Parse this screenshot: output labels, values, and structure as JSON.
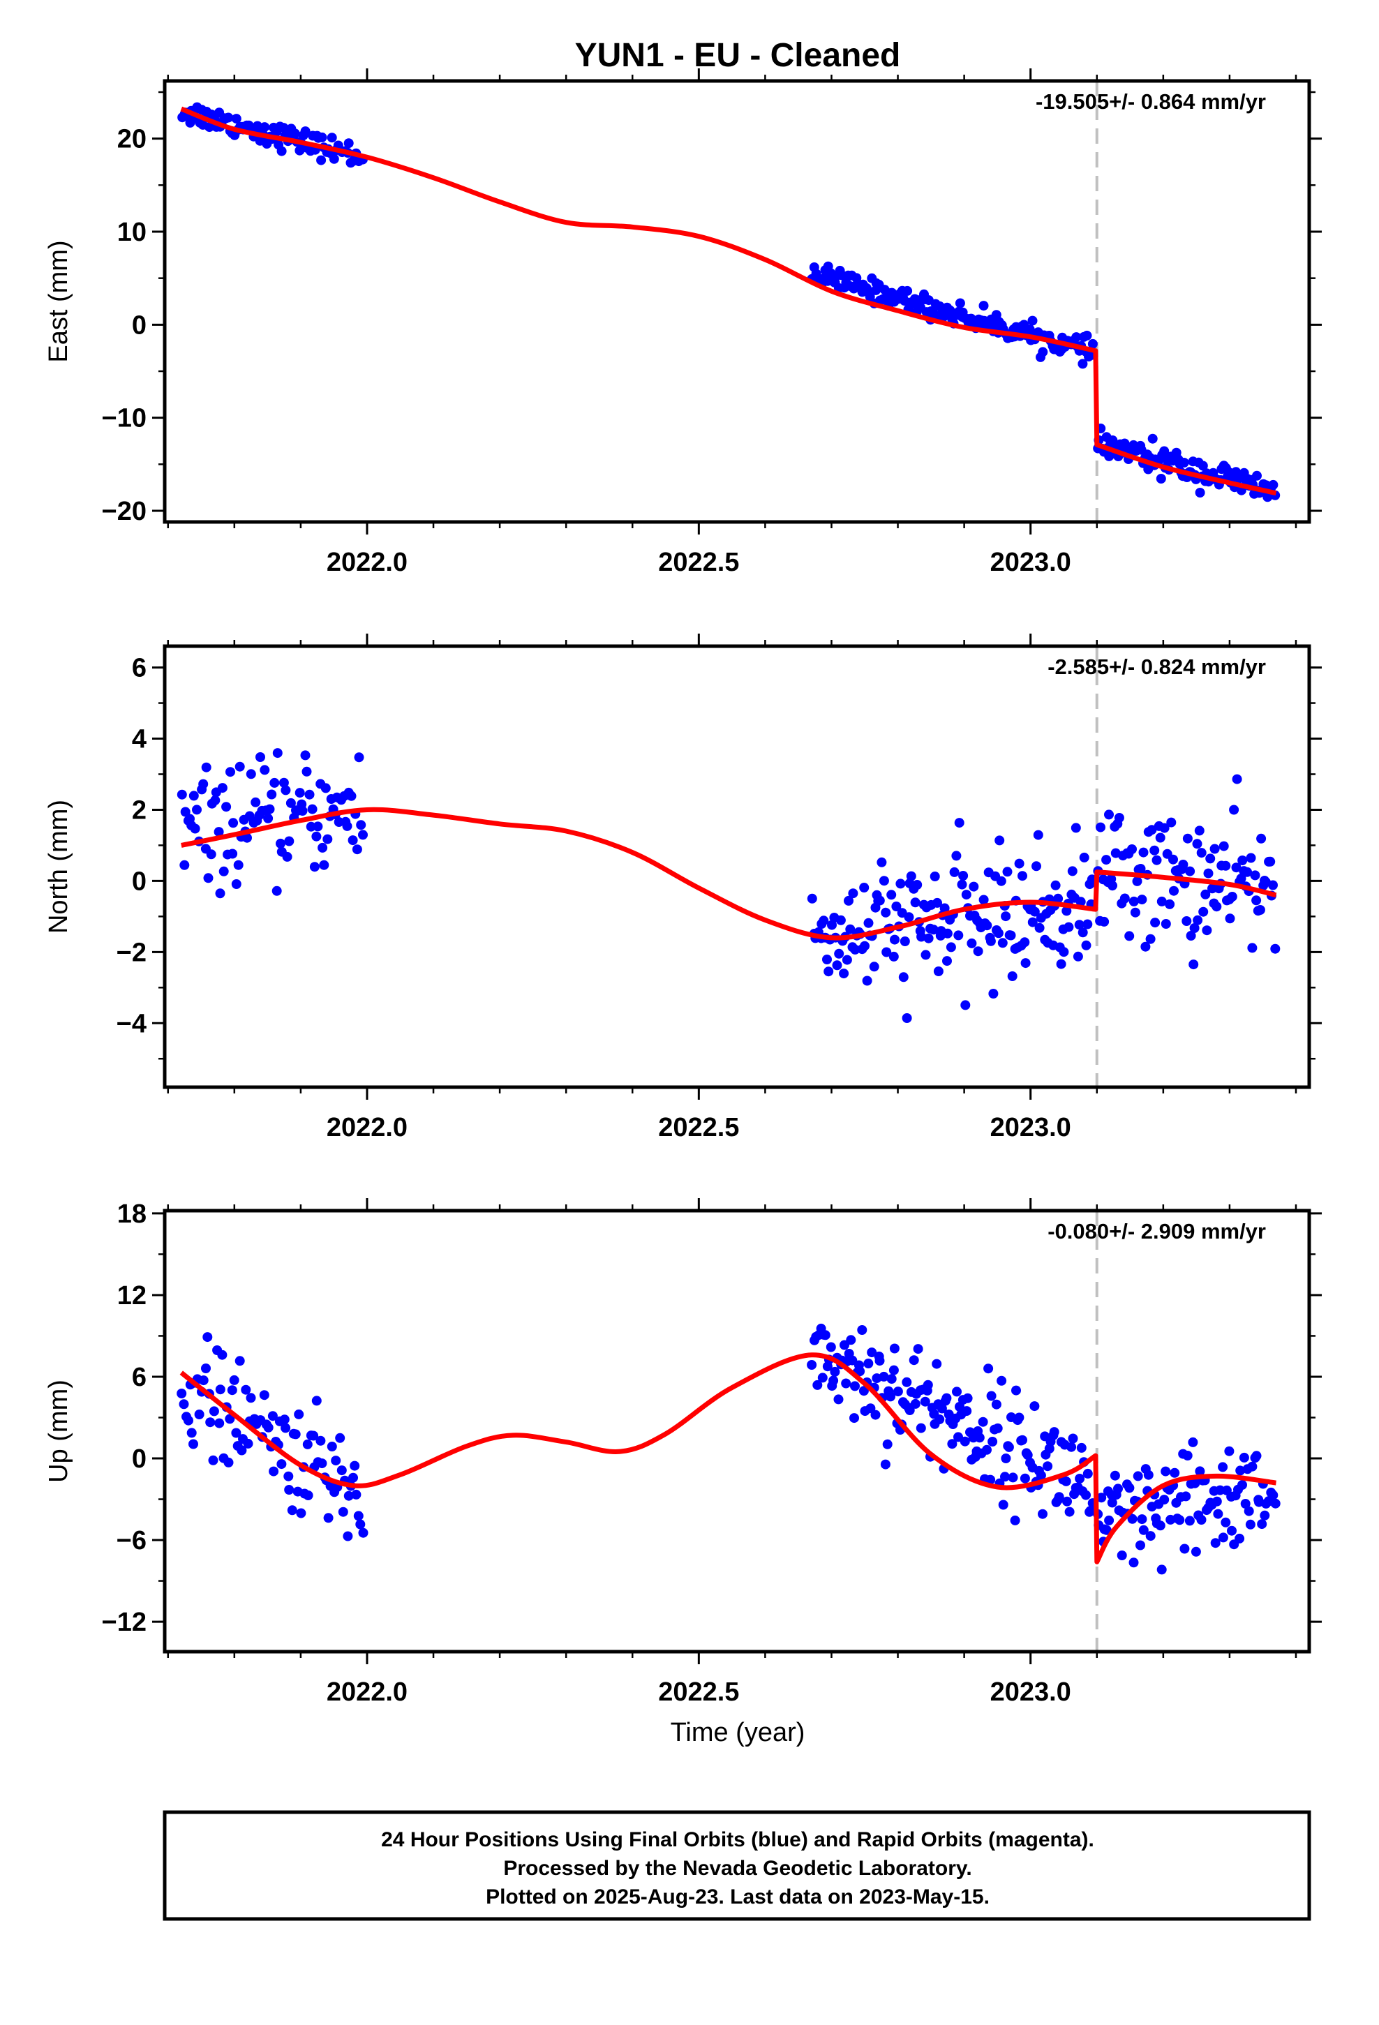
{
  "title": "YUN1  - EU - Cleaned",
  "footer": {
    "line1": "24 Hour Positions Using Final Orbits (blue) and Rapid Orbits (magenta).",
    "line2": "Processed by the Nevada Geodetic Laboratory.",
    "line3": "Plotted on 2025-Aug-23. Last data on 2023-May-15."
  },
  "colors": {
    "data": "#0000ff",
    "model": "#ff0000",
    "offset_line": "#c0c0c0",
    "frame": "#000000"
  },
  "chart_data": [
    {
      "type": "scatter",
      "name": "east",
      "ylabel": "East (mm)",
      "xlabel": "",
      "rate_text": "-19.505+/- 0.864 mm/yr",
      "xlim": [
        2021.695,
        2023.42
      ],
      "ylim": [
        -21.2,
        26.2
      ],
      "xticks": [
        2022.0,
        2022.5,
        2023.0
      ],
      "xtick_labels": [
        "2022.0",
        "2022.5",
        "2023.0"
      ],
      "yticks": [
        -20,
        -10,
        0,
        10,
        20
      ],
      "ytick_labels": [
        "−20",
        "−10",
        "0",
        "10",
        "20"
      ],
      "offset_epoch": 2023.1,
      "data_segments": [
        {
          "x_start": 2021.72,
          "x_end": 2021.995,
          "y_start": 23.0,
          "y_end": 18.0,
          "noise": 1.1,
          "count": 95
        },
        {
          "x_start": 2022.67,
          "x_end": 2023.095,
          "y_start": 5.5,
          "y_end": -3.0,
          "noise": 1.0,
          "count": 170
        },
        {
          "x_start": 2023.1,
          "x_end": 2023.37,
          "y_start": -12.8,
          "y_end": -18.0,
          "noise": 1.3,
          "count": 105
        }
      ],
      "model": {
        "x": [
          2021.72,
          2021.8,
          2021.9,
          2022.0,
          2022.1,
          2022.2,
          2022.3,
          2022.4,
          2022.5,
          2022.6,
          2022.7,
          2022.8,
          2022.9,
          2023.0,
          2023.098,
          2023.1,
          2023.2,
          2023.3,
          2023.37
        ],
        "y": [
          23.2,
          21.0,
          19.6,
          18.0,
          15.8,
          13.2,
          11.0,
          10.5,
          9.5,
          7.0,
          3.6,
          1.5,
          -0.3,
          -1.3,
          -2.8,
          -12.9,
          -15.3,
          -17.0,
          -18.1
        ]
      }
    },
    {
      "type": "scatter",
      "name": "north",
      "ylabel": "North (mm)",
      "xlabel": "",
      "rate_text": "-2.585+/- 0.824 mm/yr",
      "xlim": [
        2021.695,
        2023.42
      ],
      "ylim": [
        -5.8,
        6.6
      ],
      "xticks": [
        2022.0,
        2022.5,
        2023.0
      ],
      "xtick_labels": [
        "2022.0",
        "2022.5",
        "2023.0"
      ],
      "yticks": [
        -4,
        -2,
        0,
        2,
        4,
        6
      ],
      "ytick_labels": [
        "−4",
        "−2",
        "0",
        "2",
        "4",
        "6"
      ],
      "offset_epoch": 2023.1,
      "data_segments": [
        {
          "x_start": 2021.72,
          "x_end": 2021.995,
          "y_start": 1.4,
          "y_end": 2.0,
          "noise": 1.3,
          "count": 95
        },
        {
          "x_start": 2022.67,
          "x_end": 2023.095,
          "y_start": -1.6,
          "y_end": -0.7,
          "noise": 1.5,
          "count": 170
        },
        {
          "x_start": 2023.1,
          "x_end": 2023.37,
          "y_start": 0.3,
          "y_end": -0.3,
          "noise": 1.6,
          "count": 105
        }
      ],
      "model": {
        "x": [
          2021.72,
          2021.8,
          2021.9,
          2022.0,
          2022.1,
          2022.2,
          2022.3,
          2022.4,
          2022.5,
          2022.6,
          2022.7,
          2022.8,
          2022.9,
          2023.0,
          2023.098,
          2023.1,
          2023.2,
          2023.3,
          2023.37
        ],
        "y": [
          1.0,
          1.3,
          1.7,
          2.0,
          1.85,
          1.6,
          1.4,
          0.8,
          -0.2,
          -1.1,
          -1.6,
          -1.3,
          -0.8,
          -0.6,
          -0.8,
          0.25,
          0.1,
          -0.1,
          -0.4
        ]
      }
    },
    {
      "type": "scatter",
      "name": "up",
      "ylabel": "Up (mm)",
      "xlabel": "Time (year)",
      "rate_text": "-0.080+/- 2.909 mm/yr",
      "xlim": [
        2021.695,
        2023.42
      ],
      "ylim": [
        -14.2,
        18.2
      ],
      "xticks": [
        2022.0,
        2022.5,
        2023.0
      ],
      "xtick_labels": [
        "2022.0",
        "2022.5",
        "2023.0"
      ],
      "yticks": [
        -12,
        -6,
        0,
        6,
        12,
        18
      ],
      "ytick_labels": [
        "−12",
        "−6",
        "0",
        "6",
        "12",
        "18"
      ],
      "offset_epoch": 2023.1,
      "data_segments": [
        {
          "x_start": 2021.72,
          "x_end": 2021.995,
          "y_start": 5.5,
          "y_end": -3.0,
          "noise": 3.3,
          "count": 95
        },
        {
          "x_start": 2022.67,
          "x_end": 2023.095,
          "y_start": 8.0,
          "y_end": -2.0,
          "noise": 3.4,
          "count": 170
        },
        {
          "x_start": 2023.1,
          "x_end": 2023.37,
          "y_start": -5.5,
          "y_end": -2.0,
          "noise": 3.6,
          "count": 105
        }
      ],
      "model": {
        "x": [
          2021.72,
          2021.8,
          2021.9,
          2021.98,
          2022.05,
          2022.15,
          2022.22,
          2022.3,
          2022.38,
          2022.45,
          2022.55,
          2022.67,
          2022.75,
          2022.85,
          2022.95,
          2023.05,
          2023.098,
          2023.1,
          2023.13,
          2023.2,
          2023.28,
          2023.37
        ],
        "y": [
          6.3,
          3.2,
          -0.5,
          -2.0,
          -1.2,
          0.9,
          1.7,
          1.2,
          0.5,
          1.8,
          5.2,
          7.6,
          5.5,
          0.3,
          -2.1,
          -1.2,
          0.2,
          -7.6,
          -5.0,
          -2.0,
          -1.3,
          -1.8
        ]
      }
    }
  ]
}
